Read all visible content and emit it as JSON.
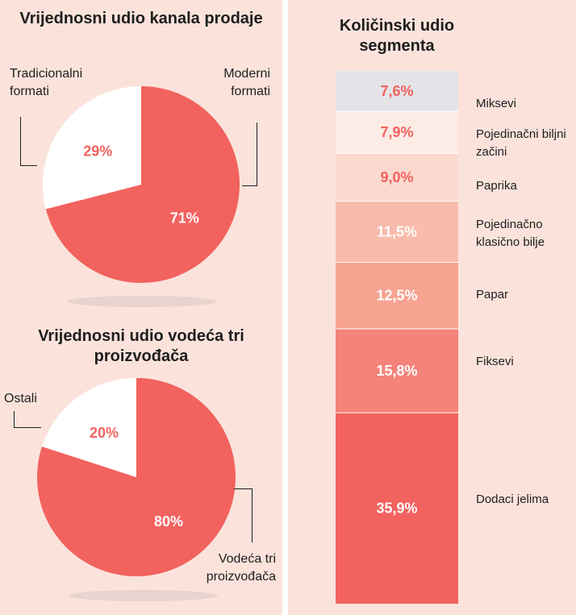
{
  "charts": {
    "pie1": {
      "title": "Vrijednosni udio kanala prodaje",
      "labels": [
        "Tradicionalni formati",
        "Moderni formati"
      ]
    },
    "pie2": {
      "title": "Vrijednosni udio vodeća tri proizvođača",
      "labels": [
        "Ostali",
        "Vodeća tri proizvođača"
      ]
    },
    "bar": {
      "title": "Količinski udio segmenta"
    }
  },
  "chart_data": [
    {
      "type": "pie",
      "title": "Vrijednosni udio kanala prodaje",
      "labels": [
        "Moderni formati",
        "Tradicionalni formati"
      ],
      "values": [
        71,
        29
      ],
      "value_labels": [
        "71%",
        "29%"
      ],
      "colors": [
        "#f2625e",
        "#ffffff"
      ],
      "label_colors": [
        "#ffffff",
        "#f2625e"
      ]
    },
    {
      "type": "pie",
      "title": "Vrijednosni udio vodeća tri proizvođača",
      "labels": [
        "Vodeća tri proizvođača",
        "Ostali"
      ],
      "values": [
        80,
        20
      ],
      "value_labels": [
        "80%",
        "20%"
      ],
      "colors": [
        "#f2625e",
        "#ffffff"
      ],
      "label_colors": [
        "#ffffff",
        "#f2625e"
      ]
    },
    {
      "type": "bar",
      "stacked": true,
      "title": "Količinski udio segmenta",
      "categories": [
        "Miksevi",
        "Pojedinačni biljni začini",
        "Paprika",
        "Pojedinačno klasično bilje",
        "Papar",
        "Fiksevi",
        "Dodaci jelima"
      ],
      "values": [
        7.6,
        7.9,
        9.0,
        11.5,
        12.5,
        15.8,
        35.9
      ],
      "value_labels": [
        "7,6%",
        "7,9%",
        "9,0%",
        "11,5%",
        "12,5%",
        "15,8%",
        "35,9%"
      ],
      "colors": [
        "#e4e3e8",
        "#fdebe6",
        "#fcd9cf",
        "#f9bbab",
        "#f7a392",
        "#f4837a",
        "#f2625e"
      ],
      "label_colors": [
        "#f2625e",
        "#f2625e",
        "#f2625e",
        "#ffffff",
        "#ffffff",
        "#ffffff",
        "#ffffff"
      ]
    }
  ]
}
